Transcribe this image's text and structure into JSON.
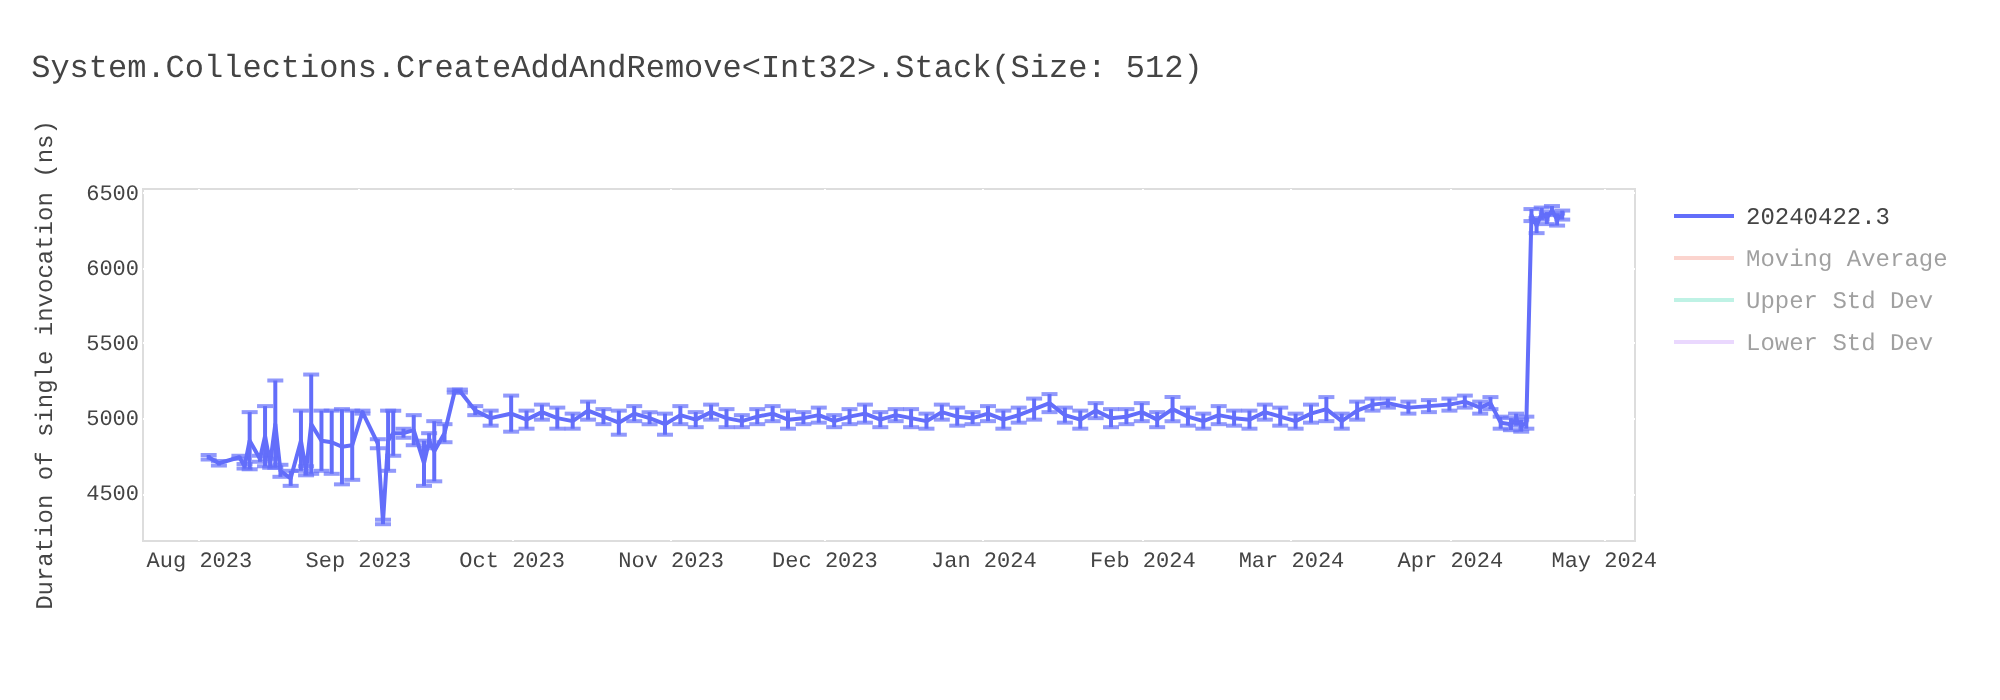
{
  "chart_data": {
    "type": "line",
    "title": "System.Collections.CreateAddAndRemove<Int32>.Stack(Size: 512)",
    "ylabel": "Duration of single invocation (ns)",
    "x": [
      "2023-08-03",
      "2023-08-05",
      "2023-08-09",
      "2023-08-10",
      "2023-08-11",
      "2023-08-13",
      "2023-08-14",
      "2023-08-15",
      "2023-08-16",
      "2023-08-17",
      "2023-08-19",
      "2023-08-21",
      "2023-08-22",
      "2023-08-23",
      "2023-08-25",
      "2023-08-27",
      "2023-08-29",
      "2023-08-31",
      "2023-09-02",
      "2023-09-05",
      "2023-09-06",
      "2023-09-07",
      "2023-09-08",
      "2023-09-10",
      "2023-09-12",
      "2023-09-14",
      "2023-09-15",
      "2023-09-16",
      "2023-09-18",
      "2023-09-20",
      "2023-09-21",
      "2023-09-24",
      "2023-09-27",
      "2023-10-01",
      "2023-10-04",
      "2023-10-07",
      "2023-10-10",
      "2023-10-13",
      "2023-10-16",
      "2023-10-19",
      "2023-10-22",
      "2023-10-25",
      "2023-10-28",
      "2023-10-31",
      "2023-11-03",
      "2023-11-06",
      "2023-11-09",
      "2023-11-12",
      "2023-11-15",
      "2023-11-18",
      "2023-11-21",
      "2023-11-24",
      "2023-11-27",
      "2023-11-30",
      "2023-12-03",
      "2023-12-06",
      "2023-12-09",
      "2023-12-12",
      "2023-12-15",
      "2023-12-18",
      "2023-12-21",
      "2023-12-24",
      "2023-12-27",
      "2023-12-30",
      "2024-01-02",
      "2024-01-05",
      "2024-01-08",
      "2024-01-11",
      "2024-01-14",
      "2024-01-17",
      "2024-01-20",
      "2024-01-23",
      "2024-01-26",
      "2024-01-29",
      "2024-02-01",
      "2024-02-04",
      "2024-02-07",
      "2024-02-10",
      "2024-02-13",
      "2024-02-16",
      "2024-02-19",
      "2024-02-22",
      "2024-02-25",
      "2024-02-28",
      "2024-03-02",
      "2024-03-05",
      "2024-03-08",
      "2024-03-11",
      "2024-03-14",
      "2024-03-17",
      "2024-03-20",
      "2024-03-24",
      "2024-03-28",
      "2024-04-01",
      "2024-04-04",
      "2024-04-07",
      "2024-04-09",
      "2024-04-11",
      "2024-04-13",
      "2024-04-14",
      "2024-04-15",
      "2024-04-16",
      "2024-04-17",
      "2024-04-18",
      "2024-04-19",
      "2024-04-20",
      "2024-04-21",
      "2024-04-22",
      "2024-04-23"
    ],
    "series": [
      {
        "name": "20240422.3",
        "color": "#636efa",
        "values": [
          4740,
          4700,
          4740,
          4680,
          4850,
          4730,
          4880,
          4700,
          4960,
          4650,
          4600,
          4850,
          4650,
          4960,
          4850,
          4840,
          4810,
          4820,
          5040,
          4830,
          4310,
          4850,
          4900,
          4900,
          4920,
          4700,
          4850,
          4780,
          4900,
          5180,
          5180,
          5050,
          5000,
          5030,
          4990,
          5040,
          5000,
          4980,
          5050,
          5010,
          4970,
          5030,
          5000,
          4960,
          5020,
          4990,
          5040,
          5000,
          4980,
          5010,
          5030,
          4990,
          5000,
          5020,
          4980,
          5010,
          5030,
          4990,
          5020,
          5000,
          4980,
          5040,
          5010,
          5000,
          5030,
          4990,
          5020,
          5060,
          5100,
          5020,
          4990,
          5050,
          5000,
          5010,
          5040,
          4990,
          5060,
          5010,
          4980,
          5020,
          5000,
          4990,
          5040,
          5010,
          4980,
          5030,
          5060,
          4980,
          5050,
          5090,
          5100,
          5070,
          5080,
          5090,
          5110,
          5070,
          5100,
          4970,
          4960,
          4990,
          4950,
          4970,
          6350,
          6280,
          6360,
          6330,
          6380,
          6320,
          6350
        ],
        "errors": [
          15,
          15,
          10,
          15,
          190,
          20,
          200,
          30,
          290,
          40,
          50,
          200,
          30,
          330,
          200,
          210,
          250,
          230,
          10,
          30,
          15,
          200,
          150,
          30,
          100,
          150,
          50,
          200,
          60,
          10,
          10,
          30,
          50,
          120,
          60,
          50,
          70,
          50,
          60,
          50,
          80,
          50,
          40,
          70,
          60,
          50,
          50,
          60,
          40,
          50,
          50,
          60,
          40,
          50,
          40,
          50,
          60,
          50,
          40,
          60,
          50,
          50,
          60,
          40,
          50,
          60,
          50,
          70,
          60,
          50,
          60,
          50,
          60,
          50,
          60,
          50,
          80,
          60,
          50,
          60,
          50,
          60,
          50,
          60,
          50,
          60,
          80,
          50,
          60,
          40,
          30,
          40,
          40,
          40,
          40,
          40,
          40,
          40,
          40,
          40,
          40,
          40,
          40,
          50,
          40,
          40,
          30,
          40,
          30
        ]
      },
      {
        "name": "Moving Average",
        "color": "#f7aa9d",
        "values": [
          null,
          null,
          null,
          null,
          null,
          null,
          null,
          null,
          null,
          null,
          null,
          null,
          null,
          null,
          null,
          null,
          null,
          null,
          null,
          null,
          null,
          null,
          null,
          null,
          null,
          null,
          null,
          null,
          null,
          null,
          null,
          null,
          null,
          null,
          null,
          null,
          null,
          null,
          null,
          null,
          null,
          null,
          null,
          null,
          null,
          null,
          null,
          null,
          null,
          null,
          null,
          null,
          null,
          null,
          null,
          null,
          null,
          null,
          null,
          null,
          null,
          null,
          null,
          null,
          null,
          null,
          null,
          null,
          null,
          null,
          null,
          null,
          null,
          null,
          null,
          null,
          null,
          null,
          null,
          null,
          null,
          null,
          null,
          null,
          null,
          null,
          null,
          null,
          null,
          null,
          null,
          null,
          null,
          null,
          null,
          null,
          null,
          null,
          null,
          null,
          null,
          null,
          null,
          null,
          null,
          null,
          null,
          null,
          null
        ]
      },
      {
        "name": "Upper Std Dev",
        "color": "#80e6cb",
        "values": [
          null,
          null,
          null,
          null,
          null,
          null,
          null,
          null,
          null,
          null,
          null,
          null,
          null,
          null,
          null,
          null,
          null,
          null,
          null,
          null,
          null,
          null,
          null,
          null,
          null,
          null,
          null,
          null,
          null,
          null,
          null,
          null,
          null,
          null,
          null,
          null,
          null,
          null,
          null,
          null,
          null,
          null,
          null,
          null,
          null,
          null,
          null,
          null,
          null,
          null,
          null,
          null,
          null,
          null,
          null,
          null,
          null,
          null,
          null,
          null,
          null,
          null,
          null,
          null,
          null,
          null,
          null,
          null,
          null,
          null,
          null,
          null,
          null,
          null,
          null,
          null,
          null,
          null,
          null,
          null,
          null,
          null,
          null,
          null,
          null,
          null,
          null,
          null,
          null,
          null,
          null,
          null,
          null,
          null,
          null,
          null,
          null,
          null,
          null,
          null,
          null,
          null,
          null,
          null,
          null,
          null,
          null,
          null,
          null
        ]
      },
      {
        "name": "Lower Std Dev",
        "color": "#d5b1fd",
        "values": [
          null,
          null,
          null,
          null,
          null,
          null,
          null,
          null,
          null,
          null,
          null,
          null,
          null,
          null,
          null,
          null,
          null,
          null,
          null,
          null,
          null,
          null,
          null,
          null,
          null,
          null,
          null,
          null,
          null,
          null,
          null,
          null,
          null,
          null,
          null,
          null,
          null,
          null,
          null,
          null,
          null,
          null,
          null,
          null,
          null,
          null,
          null,
          null,
          null,
          null,
          null,
          null,
          null,
          null,
          null,
          null,
          null,
          null,
          null,
          null,
          null,
          null,
          null,
          null,
          null,
          null,
          null,
          null,
          null,
          null,
          null,
          null,
          null,
          null,
          null,
          null,
          null,
          null,
          null,
          null,
          null,
          null,
          null,
          null,
          null,
          null,
          null,
          null,
          null,
          null,
          null,
          null,
          null,
          null,
          null,
          null,
          null,
          null,
          null,
          null,
          null,
          null,
          null,
          null,
          null,
          null,
          null,
          null,
          null
        ]
      }
    ],
    "xlim": [
      "2023-07-21",
      "2024-05-07"
    ],
    "xticks": [
      {
        "value": "2023-08-01",
        "label": "Aug 2023"
      },
      {
        "value": "2023-09-01",
        "label": "Sep 2023"
      },
      {
        "value": "2023-10-01",
        "label": "Oct 2023"
      },
      {
        "value": "2023-11-01",
        "label": "Nov 2023"
      },
      {
        "value": "2023-12-01",
        "label": "Dec 2023"
      },
      {
        "value": "2024-01-01",
        "label": "Jan 2024"
      },
      {
        "value": "2024-02-01",
        "label": "Feb 2024"
      },
      {
        "value": "2024-03-01",
        "label": "Mar 2024"
      },
      {
        "value": "2024-04-01",
        "label": "Apr 2024"
      },
      {
        "value": "2024-05-01",
        "label": "May 2024"
      }
    ],
    "ylim": [
      4190,
      6530
    ],
    "yticks": [
      4500,
      5000,
      5500,
      6000,
      6500
    ],
    "grid": true,
    "legend": "top right",
    "marker": "none",
    "line_style": "solid"
  }
}
